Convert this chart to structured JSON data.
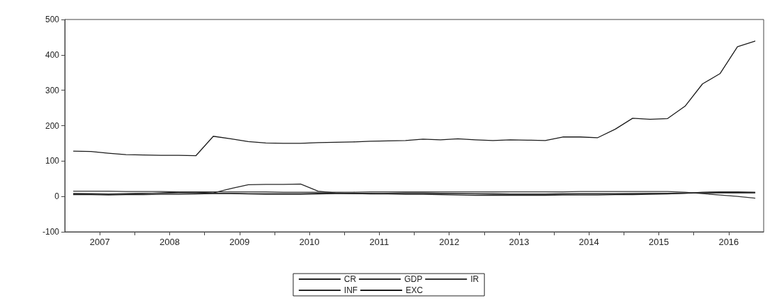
{
  "chart_data": {
    "type": "line",
    "x": [
      2007.125,
      2007.375,
      2007.625,
      2007.875,
      2008.125,
      2008.375,
      2008.625,
      2008.875,
      2009.125,
      2009.375,
      2009.625,
      2009.875,
      2010.125,
      2010.375,
      2010.625,
      2010.875,
      2011.125,
      2011.375,
      2011.625,
      2011.875,
      2012.125,
      2012.375,
      2012.625,
      2012.875,
      2013.125,
      2013.375,
      2013.625,
      2013.875,
      2014.125,
      2014.375,
      2014.625,
      2014.875,
      2015.125,
      2015.375,
      2015.625,
      2015.875,
      2016.125,
      2016.375,
      2016.625,
      2016.875
    ],
    "xlim": [
      2007,
      2017
    ],
    "xticks": [
      {
        "value": 2007.5,
        "label": "2007"
      },
      {
        "value": 2008,
        "label": null
      },
      {
        "value": 2008.5,
        "label": "2008"
      },
      {
        "value": 2009,
        "label": null
      },
      {
        "value": 2009.5,
        "label": "2009"
      },
      {
        "value": 2010,
        "label": null
      },
      {
        "value": 2010.5,
        "label": "2010"
      },
      {
        "value": 2011,
        "label": null
      },
      {
        "value": 2011.5,
        "label": "2011"
      },
      {
        "value": 2012,
        "label": null
      },
      {
        "value": 2012.5,
        "label": "2012"
      },
      {
        "value": 2013,
        "label": null
      },
      {
        "value": 2013.5,
        "label": "2013"
      },
      {
        "value": 2014,
        "label": null
      },
      {
        "value": 2014.5,
        "label": "2014"
      },
      {
        "value": 2015,
        "label": null
      },
      {
        "value": 2015.5,
        "label": "2015"
      },
      {
        "value": 2016,
        "label": null
      },
      {
        "value": 2016.5,
        "label": "2016"
      }
    ],
    "ylim": [
      -100,
      500
    ],
    "yticks": [
      -100,
      0,
      100,
      200,
      300,
      400,
      500
    ],
    "legend": "bottom",
    "grid": false,
    "series": [
      {
        "name": "CR",
        "color": "#1e1e1e",
        "values": [
          5,
          5,
          4,
          5,
          5,
          6,
          6,
          7,
          8,
          8,
          7,
          6,
          6,
          6,
          7,
          8,
          8,
          7,
          7,
          6,
          6,
          5,
          4,
          3,
          3,
          3,
          3,
          3,
          4,
          4,
          4,
          5,
          5,
          6,
          7,
          9,
          12,
          13,
          13,
          12
        ]
      },
      {
        "name": "GDP",
        "color": "#2a2a2a",
        "values": [
          8,
          8,
          7,
          8,
          9,
          9,
          10,
          10,
          9,
          9,
          8,
          8,
          8,
          8,
          9,
          9,
          9,
          9,
          8,
          8,
          8,
          8,
          8,
          8,
          8,
          7,
          7,
          7,
          8,
          8,
          8,
          8,
          8,
          9,
          9,
          10,
          10,
          11,
          11,
          11
        ]
      },
      {
        "name": "IR",
        "color": "#333333",
        "values": [
          15,
          15,
          15,
          14,
          14,
          14,
          13,
          13,
          13,
          13,
          13,
          13,
          12,
          12,
          12,
          12,
          12,
          13,
          13,
          13,
          13,
          13,
          13,
          13,
          13,
          13,
          13,
          13,
          13,
          14,
          14,
          14,
          14,
          14,
          14,
          12,
          8,
          4,
          0,
          -5
        ]
      },
      {
        "name": "INF",
        "color": "#262626",
        "values": [
          8,
          7,
          6,
          7,
          8,
          10,
          12,
          12,
          10,
          22,
          33,
          34,
          34,
          35,
          15,
          10,
          8,
          8,
          9,
          10,
          10,
          9,
          8,
          7,
          6,
          6,
          6,
          6,
          6,
          7,
          7,
          7,
          8,
          8,
          8,
          9,
          10,
          10,
          10,
          10
        ]
      },
      {
        "name": "EXC",
        "color": "#1a1a1a",
        "values": [
          128,
          127,
          122,
          118,
          117,
          116,
          116,
          115,
          170,
          163,
          155,
          151,
          150,
          150,
          152,
          153,
          154,
          156,
          157,
          158,
          162,
          160,
          163,
          160,
          158,
          160,
          159,
          158,
          168,
          168,
          166,
          190,
          221,
          218,
          220,
          255,
          318,
          347,
          423,
          439
        ]
      }
    ]
  }
}
